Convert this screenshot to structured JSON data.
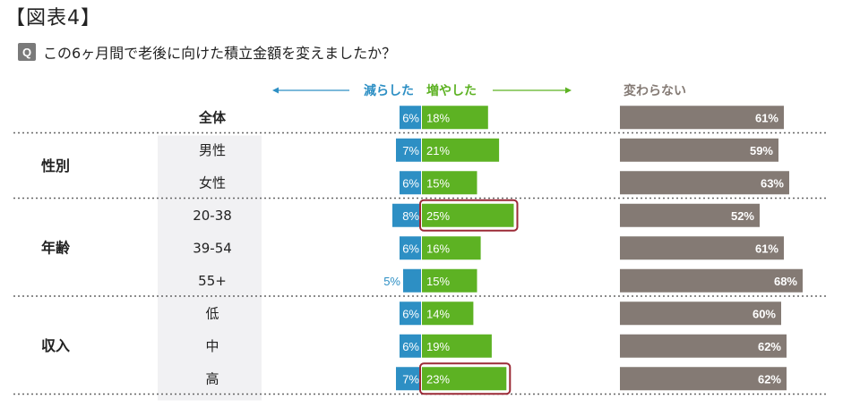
{
  "figure_title": "【図表4】",
  "question": {
    "badge": "Q",
    "text": "この6ヶ月間で老後に向けた積立金額を変えましたか？"
  },
  "chart_data": {
    "type": "bar",
    "legend": {
      "decrease": "減らした",
      "increase": "増やした",
      "unchanged": "変わらない"
    },
    "colors": {
      "decrease": "#2d8fc4",
      "increase": "#5db223",
      "unchanged": "#847a74",
      "highlight": "#9b2a36",
      "label_shade": "#f1f1f3",
      "dotted": "#666666"
    },
    "groups": [
      {
        "label": "",
        "rows": [
          0
        ]
      },
      {
        "label": "性別",
        "rows": [
          1,
          2
        ]
      },
      {
        "label": "年齢",
        "rows": [
          3,
          4,
          5
        ]
      },
      {
        "label": "収入",
        "rows": [
          6,
          7,
          8
        ]
      }
    ],
    "categories": [
      "全体",
      "男性",
      "女性",
      "20-38",
      "39-54",
      "55+",
      "低",
      "中",
      "高"
    ],
    "series": [
      {
        "key": "decrease",
        "name": "減らした",
        "values": [
          6,
          7,
          6,
          8,
          6,
          5,
          6,
          6,
          7
        ],
        "labels": [
          "6%",
          "7%",
          "6%",
          "8%",
          "6%",
          "5%",
          "6%",
          "6%",
          "7%"
        ]
      },
      {
        "key": "increase",
        "name": "増やした",
        "values": [
          18,
          21,
          15,
          25,
          16,
          15,
          14,
          19,
          23
        ],
        "labels": [
          "18%",
          "21%",
          "15%",
          "25%",
          "16%",
          "15%",
          "14%",
          "19%",
          "23%"
        ]
      },
      {
        "key": "unchanged",
        "name": "変わらない",
        "values": [
          61,
          59,
          63,
          52,
          61,
          68,
          60,
          62,
          62
        ],
        "labels": [
          "61%",
          "59%",
          "63%",
          "52%",
          "61%",
          "68%",
          "60%",
          "62%",
          "62%"
        ]
      }
    ],
    "highlighted_categories": [
      "20-38",
      "高"
    ]
  }
}
